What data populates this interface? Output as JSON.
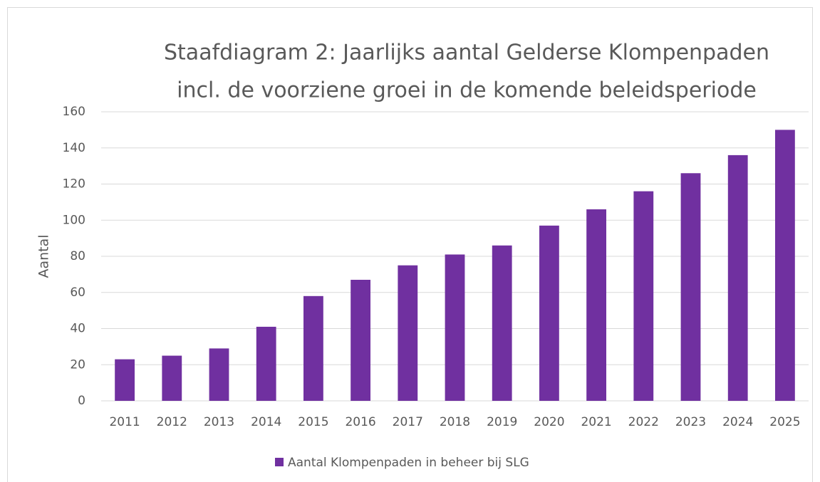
{
  "chart_data": {
    "type": "bar",
    "title": [
      "Staafdiagram 2: Jaarlijks aantal Gelderse Klompenpaden",
      "incl. de voorziene groei in de komende beleidsperiode"
    ],
    "y_label": "Aantal",
    "categories": [
      "2011",
      "2012",
      "2013",
      "2014",
      "2015",
      "2016",
      "2017",
      "2018",
      "2019",
      "2020",
      "2021",
      "2022",
      "2023",
      "2024",
      "2025"
    ],
    "series": [
      {
        "name": "Aantal Klompenpaden in beheer bij SLG",
        "color": "#7030a0",
        "values": [
          23,
          25,
          29,
          41,
          58,
          67,
          75,
          81,
          86,
          97,
          106,
          116,
          126,
          136,
          150
        ]
      }
    ],
    "ylim": [
      0,
      160
    ],
    "yticks": [
      0,
      20,
      40,
      60,
      80,
      100,
      120,
      140,
      160
    ],
    "grid": true,
    "legend": "bottom"
  }
}
